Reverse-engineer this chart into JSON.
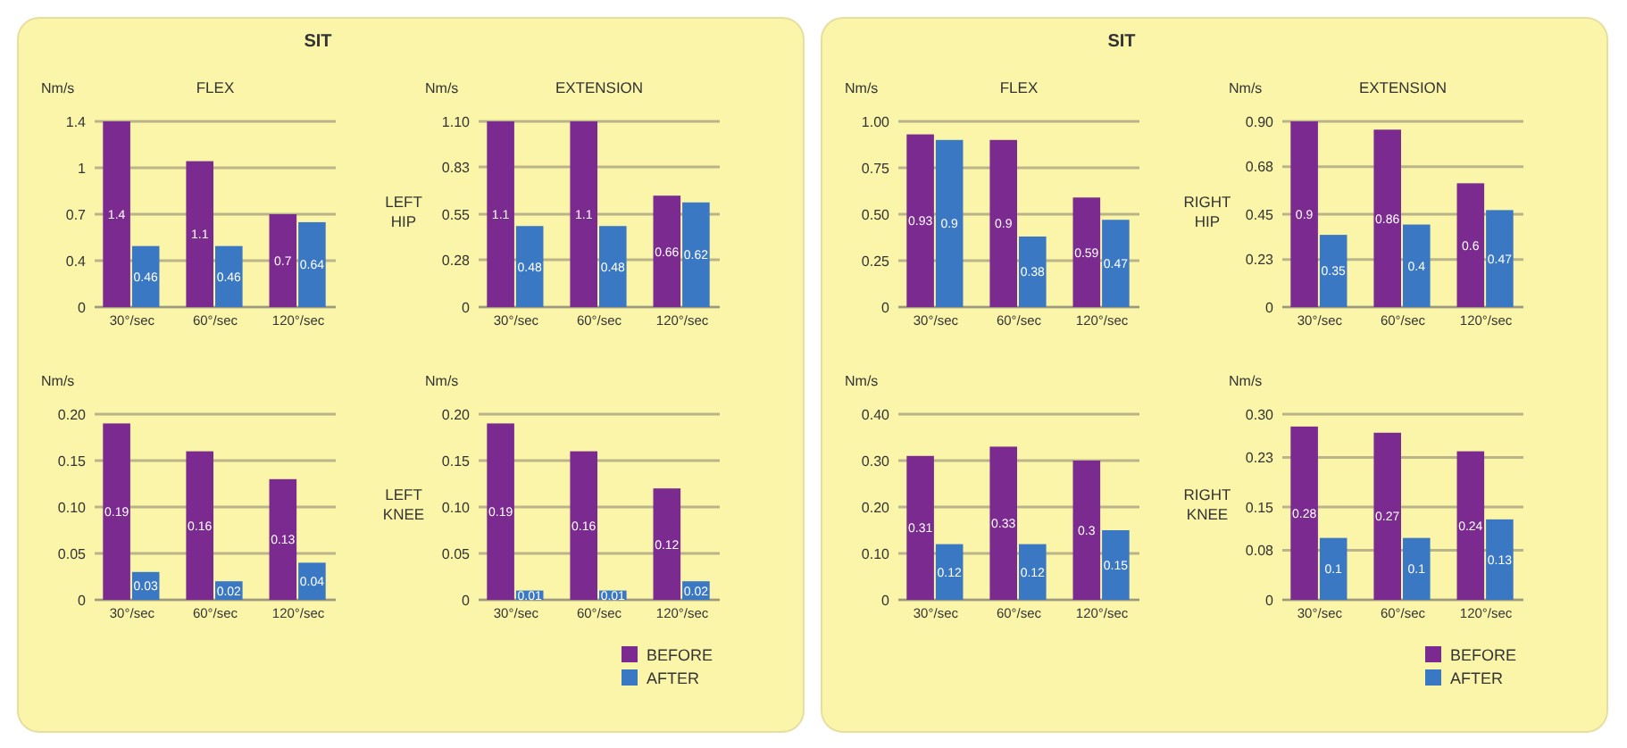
{
  "chart_data": [
    {
      "type": "bar",
      "subtitle": "SIT",
      "title": "FLEX",
      "ylabel": "Nm/s",
      "annotations": [
        "LEFT HIP"
      ],
      "categories": [
        "30°/sec",
        "60°/sec",
        "120°/sec"
      ],
      "series": [
        {
          "color": "#7b2a8f",
          "values": [
            1.4,
            1.1,
            0.7
          ]
        },
        {
          "color": "#3b78c4",
          "values": [
            0.46,
            0.46,
            0.64
          ]
        }
      ],
      "ylim": [
        0,
        1.4
      ],
      "yticks": [
        0,
        {
          "value": 0.35,
          "label": "0.4"
        },
        0.7,
        {
          "value": 1.05,
          "label": "1"
        },
        1.4
      ],
      "grid": "y",
      "data_labels": true
    },
    {
      "type": "bar",
      "title": "EXTENSION",
      "ylabel": "Nm/s",
      "categories": [
        "30°/sec",
        "60°/sec",
        "120°/sec"
      ],
      "series": [
        {
          "color": "#7b2a8f",
          "values": [
            1.1,
            1.1,
            0.66
          ]
        },
        {
          "color": "#3b78c4",
          "values": [
            0.48,
            0.48,
            0.62
          ]
        }
      ],
      "ylim": [
        0,
        1.1
      ],
      "yticks": [
        0,
        0.28,
        0.55,
        0.83,
        {
          "value": 1.1,
          "label": "1.10"
        }
      ],
      "grid": "y",
      "data_labels": true
    },
    {
      "type": "bar",
      "ylabel": "Nm/s",
      "annotations": [
        "LEFT KNEE"
      ],
      "categories": [
        "30°/sec",
        "60°/sec",
        "120°/sec"
      ],
      "series": [
        {
          "color": "#7b2a8f",
          "values": [
            0.19,
            0.16,
            0.13
          ]
        },
        {
          "color": "#3b78c4",
          "values": [
            0.03,
            0.02,
            0.04
          ]
        }
      ],
      "ylim": [
        0,
        0.2
      ],
      "yticks": [
        0,
        0.05,
        {
          "value": 0.1,
          "label": "0.10"
        },
        0.15,
        {
          "value": 0.2,
          "label": "0.20"
        }
      ],
      "grid": "y",
      "data_labels": true
    },
    {
      "type": "bar",
      "ylabel": "Nm/s",
      "categories": [
        "30°/sec",
        "60°/sec",
        "120°/sec"
      ],
      "series": [
        {
          "name": "BEFORE",
          "color": "#7b2a8f",
          "values": [
            0.19,
            0.16,
            0.12
          ]
        },
        {
          "name": "AFTER",
          "color": "#3b78c4",
          "values": [
            0.01,
            0.01,
            0.02
          ]
        }
      ],
      "ylim": [
        0,
        0.2
      ],
      "yticks": [
        0,
        0.05,
        {
          "value": 0.1,
          "label": "0.10"
        },
        0.15,
        {
          "value": 0.2,
          "label": "0.20"
        }
      ],
      "grid": "y",
      "data_labels": true,
      "legend": "bottom right"
    },
    {
      "type": "bar",
      "subtitle": "SIT",
      "title": "FLEX",
      "ylabel": "Nm/s",
      "annotations": [
        "RIGHT HIP"
      ],
      "categories": [
        "30°/sec",
        "60°/sec",
        "120°/sec"
      ],
      "series": [
        {
          "color": "#7b2a8f",
          "values": [
            0.93,
            0.9,
            0.59
          ]
        },
        {
          "color": "#3b78c4",
          "values": [
            0.9,
            0.38,
            0.47
          ]
        }
      ],
      "ylim": [
        0,
        1
      ],
      "yticks": [
        0,
        0.25,
        {
          "value": 0.5,
          "label": "0.50"
        },
        0.75,
        {
          "value": 1,
          "label": "1.00"
        }
      ],
      "grid": "y",
      "data_labels": true
    },
    {
      "type": "bar",
      "title": "EXTENSION",
      "ylabel": "Nm/s",
      "categories": [
        "30°/sec",
        "60°/sec",
        "120°/sec"
      ],
      "series": [
        {
          "color": "#7b2a8f",
          "values": [
            0.9,
            0.86,
            0.6
          ]
        },
        {
          "color": "#3b78c4",
          "values": [
            0.35,
            0.4,
            0.47
          ]
        }
      ],
      "ylim": [
        0,
        0.9
      ],
      "yticks": [
        0,
        0.23,
        0.45,
        0.68,
        {
          "value": 0.9,
          "label": "0.90"
        }
      ],
      "grid": "y",
      "data_labels": true
    },
    {
      "type": "bar",
      "ylabel": "Nm/s",
      "annotations": [
        "RIGHT KNEE"
      ],
      "categories": [
        "30°/sec",
        "60°/sec",
        "120°/sec"
      ],
      "series": [
        {
          "color": "#7b2a8f",
          "values": [
            0.31,
            0.33,
            0.3
          ]
        },
        {
          "color": "#3b78c4",
          "values": [
            0.12,
            0.12,
            0.15
          ]
        }
      ],
      "ylim": [
        0,
        0.4
      ],
      "yticks": [
        0,
        {
          "value": 0.1,
          "label": "0.10"
        },
        {
          "value": 0.2,
          "label": "0.20"
        },
        {
          "value": 0.3,
          "label": "0.30"
        },
        {
          "value": 0.4,
          "label": "0.40"
        }
      ],
      "grid": "y",
      "data_labels": true
    },
    {
      "type": "bar",
      "ylabel": "Nm/s",
      "categories": [
        "30°/sec",
        "60°/sec",
        "120°/sec"
      ],
      "series": [
        {
          "name": "BEFORE",
          "color": "#7b2a8f",
          "values": [
            0.28,
            0.27,
            0.24
          ]
        },
        {
          "name": "AFTER",
          "color": "#3b78c4",
          "values": [
            0.1,
            0.1,
            0.13
          ]
        }
      ],
      "ylim": [
        0,
        0.3
      ],
      "yticks": [
        0,
        0.08,
        0.15,
        0.23,
        {
          "value": 0.3,
          "label": "0.30"
        }
      ],
      "grid": "y",
      "data_labels": true,
      "legend": "bottom right"
    }
  ]
}
